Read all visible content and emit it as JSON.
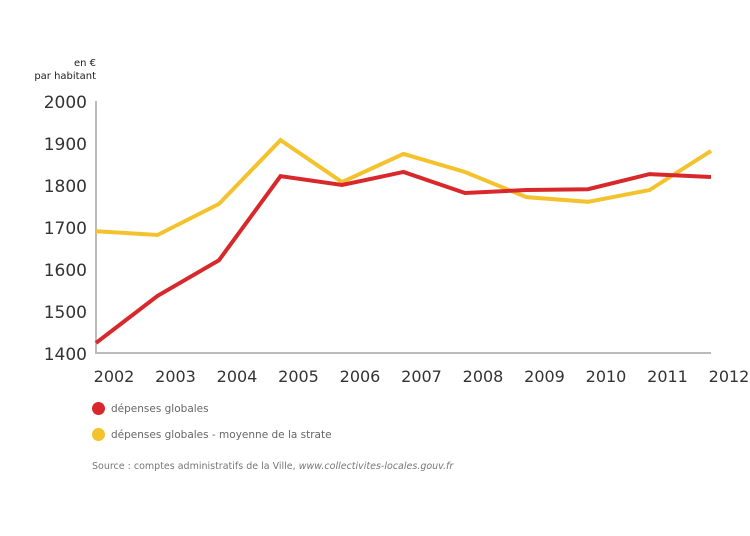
{
  "chart_data": {
    "type": "line",
    "unit_label_line1": "en €",
    "unit_label_line2": "par habitant",
    "x": [
      "2002",
      "2003",
      "2004",
      "2005",
      "2006",
      "2007",
      "2008",
      "2009",
      "2010",
      "2011",
      "2012"
    ],
    "yticks": [
      1400,
      1500,
      1600,
      1700,
      1800,
      1900,
      2000
    ],
    "ylim": [
      1400,
      2000
    ],
    "grid": false,
    "series": [
      {
        "name": "dépenses globales",
        "color": "#d8282b",
        "values": [
          1424,
          1536,
          1621,
          1821,
          1800,
          1831,
          1781,
          1788,
          1790,
          1826,
          1819
        ]
      },
      {
        "name": "dépenses globales - moyenne de la strate",
        "color": "#f3c22c",
        "values": [
          1690,
          1681,
          1755,
          1907,
          1807,
          1874,
          1831,
          1771,
          1760,
          1788,
          1881
        ]
      }
    ],
    "legend_position": "bottom-left",
    "source_prefix": "Source : comptes administratifs de la Ville, ",
    "source_link": "www.collectivites-locales.gouv.fr"
  }
}
